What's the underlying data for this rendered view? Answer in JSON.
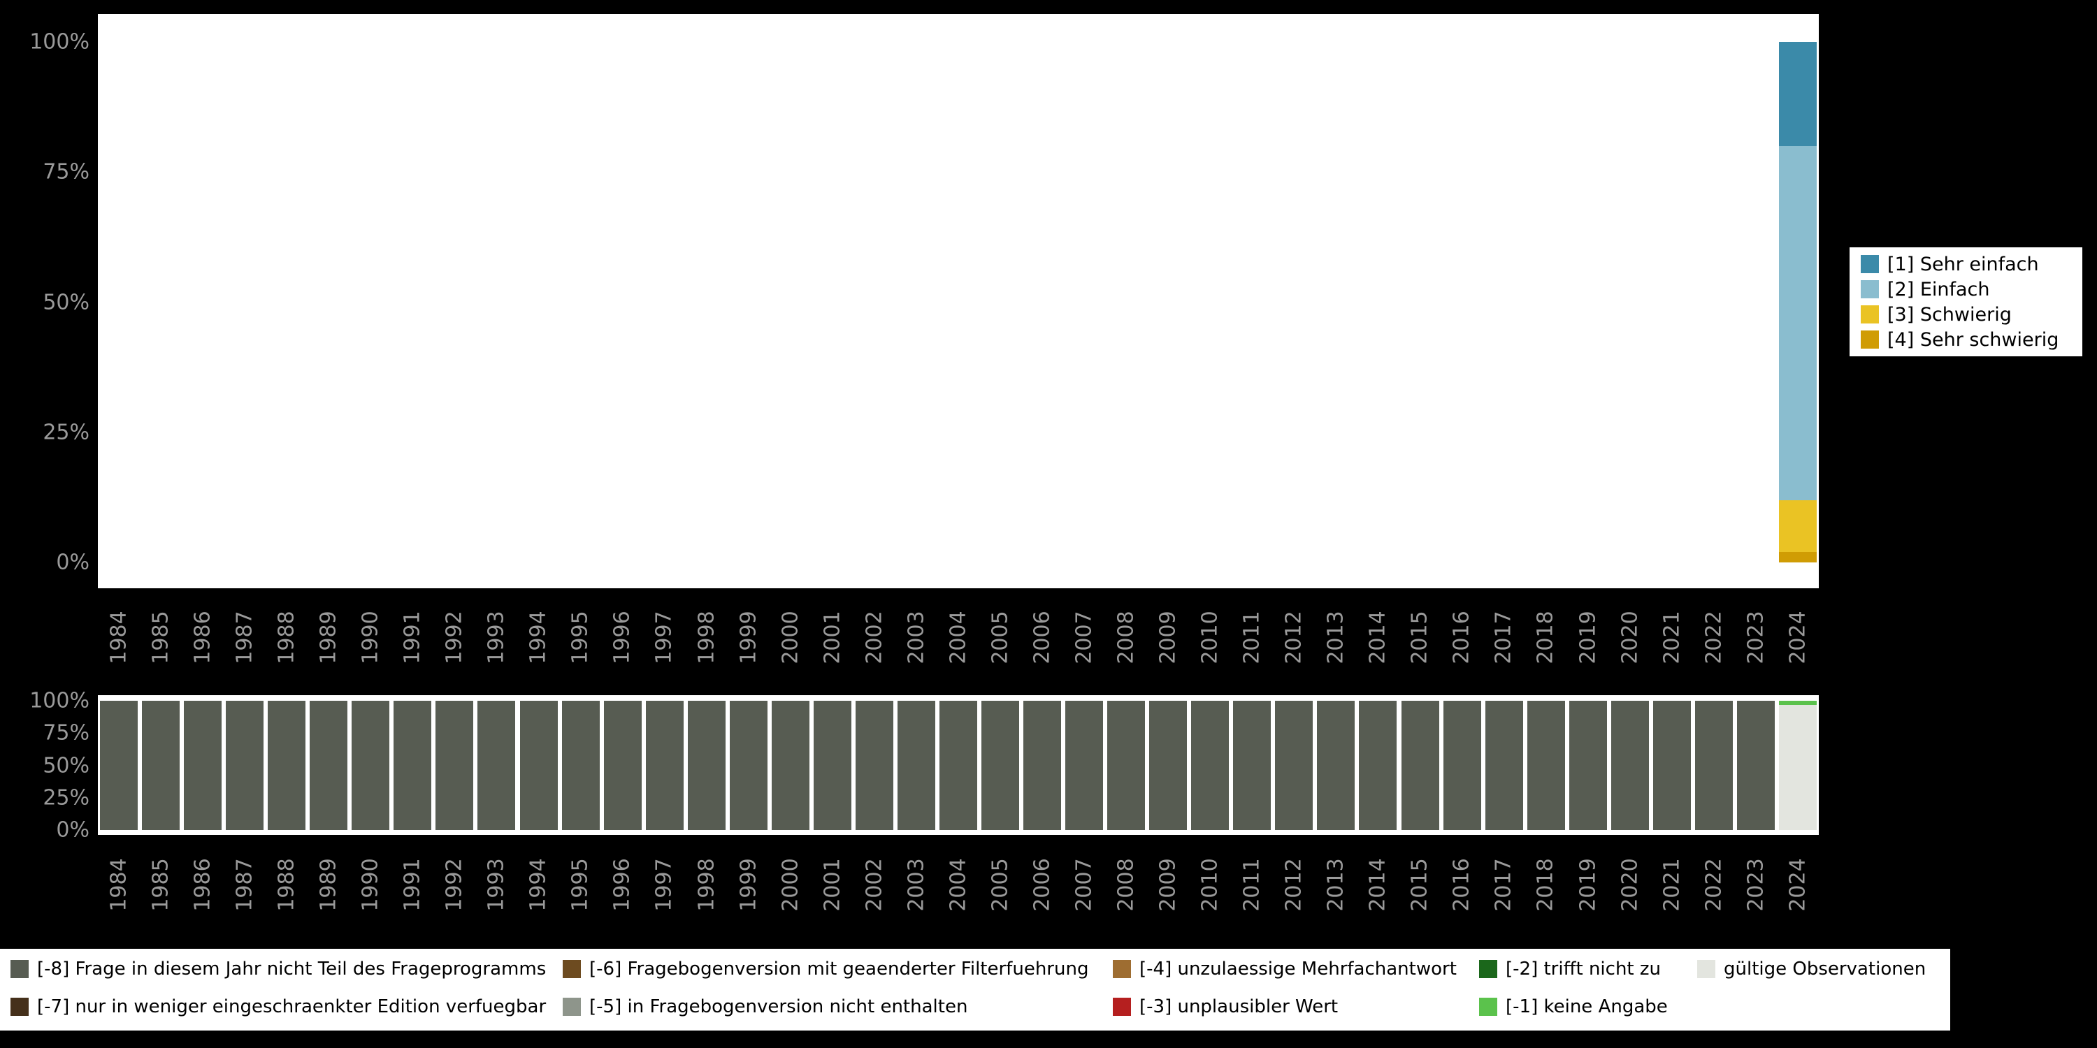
{
  "figure": {
    "background": "#000000",
    "plot_background": "#ffffff",
    "tick_color": "#9a9a9a"
  },
  "chart_data": [
    {
      "type": "bar",
      "stacked": true,
      "title": "",
      "xlabel": "",
      "ylabel": "",
      "ylim": [
        0,
        100
      ],
      "grid": false,
      "legend_position": "right",
      "categories": [
        "1984",
        "1985",
        "1986",
        "1987",
        "1988",
        "1989",
        "1990",
        "1991",
        "1992",
        "1993",
        "1994",
        "1995",
        "1996",
        "1997",
        "1998",
        "1999",
        "2000",
        "2001",
        "2002",
        "2003",
        "2004",
        "2005",
        "2006",
        "2007",
        "2008",
        "2009",
        "2010",
        "2011",
        "2012",
        "2013",
        "2014",
        "2015",
        "2016",
        "2017",
        "2018",
        "2019",
        "2020",
        "2021",
        "2022",
        "2023",
        "2024"
      ],
      "yticks": {
        "values": [
          0,
          25,
          50,
          75,
          100
        ],
        "labels": [
          "0%",
          "25%",
          "50%",
          "75%",
          "100%"
        ]
      },
      "series": [
        {
          "name": "[4] Sehr schwierig",
          "color": "#d09c04",
          "values": [
            0,
            0,
            0,
            0,
            0,
            0,
            0,
            0,
            0,
            0,
            0,
            0,
            0,
            0,
            0,
            0,
            0,
            0,
            0,
            0,
            0,
            0,
            0,
            0,
            0,
            0,
            0,
            0,
            0,
            0,
            0,
            0,
            0,
            0,
            0,
            0,
            0,
            0,
            0,
            0,
            2
          ]
        },
        {
          "name": "[3] Schwierig",
          "color": "#eac324",
          "values": [
            0,
            0,
            0,
            0,
            0,
            0,
            0,
            0,
            0,
            0,
            0,
            0,
            0,
            0,
            0,
            0,
            0,
            0,
            0,
            0,
            0,
            0,
            0,
            0,
            0,
            0,
            0,
            0,
            0,
            0,
            0,
            0,
            0,
            0,
            0,
            0,
            0,
            0,
            0,
            0,
            10
          ]
        },
        {
          "name": "[2] Einfach",
          "color": "#8abdcf",
          "values": [
            0,
            0,
            0,
            0,
            0,
            0,
            0,
            0,
            0,
            0,
            0,
            0,
            0,
            0,
            0,
            0,
            0,
            0,
            0,
            0,
            0,
            0,
            0,
            0,
            0,
            0,
            0,
            0,
            0,
            0,
            0,
            0,
            0,
            0,
            0,
            0,
            0,
            0,
            0,
            0,
            68
          ]
        },
        {
          "name": "[1] Sehr einfach",
          "color": "#3b8aa9",
          "values": [
            0,
            0,
            0,
            0,
            0,
            0,
            0,
            0,
            0,
            0,
            0,
            0,
            0,
            0,
            0,
            0,
            0,
            0,
            0,
            0,
            0,
            0,
            0,
            0,
            0,
            0,
            0,
            0,
            0,
            0,
            0,
            0,
            0,
            0,
            0,
            0,
            0,
            0,
            0,
            0,
            20
          ]
        }
      ]
    },
    {
      "type": "bar",
      "stacked": true,
      "title": "",
      "xlabel": "",
      "ylabel": "",
      "ylim": [
        0,
        100
      ],
      "grid": false,
      "categories": [
        "1984",
        "1985",
        "1986",
        "1987",
        "1988",
        "1989",
        "1990",
        "1991",
        "1992",
        "1993",
        "1994",
        "1995",
        "1996",
        "1997",
        "1998",
        "1999",
        "2000",
        "2001",
        "2002",
        "2003",
        "2004",
        "2005",
        "2006",
        "2007",
        "2008",
        "2009",
        "2010",
        "2011",
        "2012",
        "2013",
        "2014",
        "2015",
        "2016",
        "2017",
        "2018",
        "2019",
        "2020",
        "2021",
        "2022",
        "2023",
        "2024"
      ],
      "yticks": {
        "values": [
          0,
          25,
          50,
          75,
          100
        ],
        "labels": [
          "0%",
          "25%",
          "50%",
          "75%",
          "100%"
        ]
      },
      "series": [
        {
          "name": "[-8] Frage in diesem Jahr nicht Teil des Frageprogramms",
          "color": "#575c52",
          "values": [
            100,
            100,
            100,
            100,
            100,
            100,
            100,
            100,
            100,
            100,
            100,
            100,
            100,
            100,
            100,
            100,
            100,
            100,
            100,
            100,
            100,
            100,
            100,
            100,
            100,
            100,
            100,
            100,
            100,
            100,
            100,
            100,
            100,
            100,
            100,
            100,
            100,
            100,
            100,
            100,
            0
          ]
        },
        {
          "name": "gültige Observationen",
          "color": "#e3e5df",
          "values": [
            0,
            0,
            0,
            0,
            0,
            0,
            0,
            0,
            0,
            0,
            0,
            0,
            0,
            0,
            0,
            0,
            0,
            0,
            0,
            0,
            0,
            0,
            0,
            0,
            0,
            0,
            0,
            0,
            0,
            0,
            0,
            0,
            0,
            0,
            0,
            0,
            0,
            0,
            0,
            0,
            97
          ]
        },
        {
          "name": "[-1] keine Angabe",
          "color": "#5bc24c",
          "values": [
            0,
            0,
            0,
            0,
            0,
            0,
            0,
            0,
            0,
            0,
            0,
            0,
            0,
            0,
            0,
            0,
            0,
            0,
            0,
            0,
            0,
            0,
            0,
            0,
            0,
            0,
            0,
            0,
            0,
            0,
            0,
            0,
            0,
            0,
            0,
            0,
            0,
            0,
            0,
            0,
            3
          ]
        }
      ]
    }
  ],
  "answer_legend": {
    "items": [
      {
        "label": "[1] Sehr einfach",
        "color": "#3b8aa9"
      },
      {
        "label": "[2] Einfach",
        "color": "#8abdcf"
      },
      {
        "label": "[3] Schwierig",
        "color": "#eac324"
      },
      {
        "label": "[4] Sehr schwierig",
        "color": "#d09c04"
      }
    ]
  },
  "missing_legend": {
    "items": [
      {
        "label": "[-8] Frage in diesem Jahr nicht Teil des Frageprogramms",
        "color": "#575c52",
        "col": 0,
        "row": 0
      },
      {
        "label": "[-7] nur in weniger eingeschraenkter Edition verfuegbar",
        "color": "#45301b",
        "col": 0,
        "row": 1
      },
      {
        "label": "[-6] Fragebogenversion mit geaenderter Filterfuehrung",
        "color": "#6d4b20",
        "col": 1,
        "row": 0
      },
      {
        "label": "[-5] in Fragebogenversion nicht enthalten",
        "color": "#8e958b",
        "col": 1,
        "row": 1
      },
      {
        "label": "[-4] unzulaessige Mehrfachantwort",
        "color": "#9e6d31",
        "col": 2,
        "row": 0
      },
      {
        "label": "[-3] unplausibler Wert",
        "color": "#b51f1f",
        "col": 2,
        "row": 1
      },
      {
        "label": "[-2] trifft nicht zu",
        "color": "#1b671b",
        "col": 3,
        "row": 0
      },
      {
        "label": "[-1] keine Angabe",
        "color": "#5bc24c",
        "col": 3,
        "row": 1
      },
      {
        "label": "gültige Observationen",
        "color": "#e3e5df",
        "col": 4,
        "row": 0
      }
    ]
  }
}
